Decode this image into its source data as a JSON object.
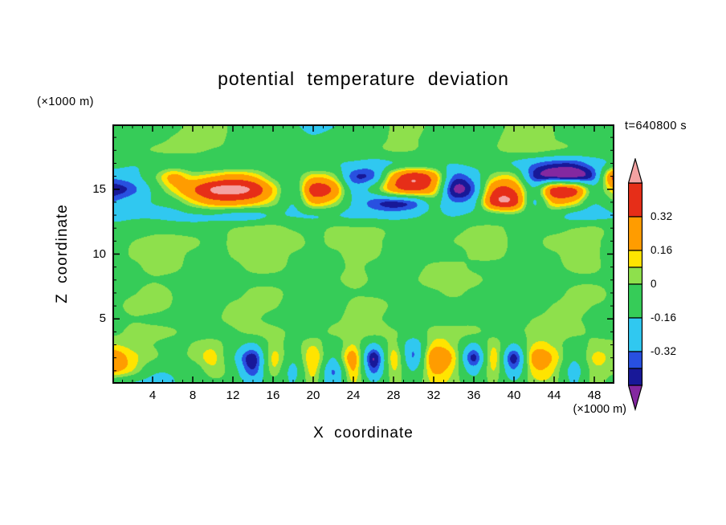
{
  "figure": {
    "title": "potential temperature deviation",
    "timestamp": "t=640800 s",
    "x_axis": {
      "label": "X coordinate",
      "unit": "(×1000 m)",
      "min": 0,
      "max": 50,
      "major_ticks": [
        4,
        8,
        12,
        16,
        20,
        24,
        28,
        32,
        36,
        40,
        44,
        48
      ],
      "minor_tick_interval": 1
    },
    "z_axis": {
      "label": "Z coordinate",
      "unit": "(×1000 m)",
      "min": 0,
      "max": 20,
      "major_ticks": [
        5,
        10,
        15
      ],
      "minor_tick_interval": 1
    },
    "colorbar": {
      "labels": [
        "0.32",
        "0.16",
        "0",
        "-0.16",
        "-0.32"
      ],
      "top_value": 0.48,
      "value_step": 0.08,
      "arrow_top_color": "#f4a2a2",
      "arrow_bottom_color": "#8428a0"
    }
  },
  "chart_data": {
    "type": "heatmap",
    "title": "potential temperature deviation",
    "xlabel": "X coordinate (×1000 m)",
    "ylabel": "Z coordinate (×1000 m)",
    "x_range": [
      0,
      50
    ],
    "z_range": [
      0,
      20
    ],
    "legend_position": "right",
    "grid": false,
    "levels": [
      -0.48,
      -0.4,
      -0.32,
      -0.16,
      0,
      0.08,
      0.16,
      0.32,
      0.48
    ],
    "colors": [
      "#8428a0",
      "#181898",
      "#2850e0",
      "#30c8f0",
      "#36cc58",
      "#8ee04c",
      "#ffe400",
      "#ff9c00",
      "#e62e18",
      "#f4a2a2"
    ],
    "x": [
      0,
      2,
      4,
      6,
      8,
      10,
      12,
      14,
      16,
      18,
      20,
      22,
      24,
      26,
      28,
      30,
      32,
      34,
      36,
      38,
      40,
      42,
      44,
      46,
      48,
      50
    ],
    "z": [
      20,
      19,
      18,
      17,
      16,
      15,
      14,
      13,
      12,
      11,
      10,
      9,
      8,
      7,
      6,
      5,
      4,
      3,
      2,
      1,
      0
    ],
    "values": [
      [
        -0.05,
        -0.05,
        -0.05,
        -0.02,
        0.04,
        0.05,
        -0.02,
        -0.05,
        -0.07,
        -0.14,
        -0.22,
        -0.18,
        -0.08,
        -0.04,
        0.03,
        0.04,
        -0.02,
        -0.05,
        -0.05,
        -0.04,
        0.03,
        0.04,
        -0.02,
        -0.05,
        -0.05,
        -0.05
      ],
      [
        -0.05,
        -0.04,
        -0.02,
        0.03,
        0.05,
        0.03,
        -0.03,
        -0.05,
        -0.06,
        -0.1,
        -0.16,
        -0.12,
        -0.06,
        -0.03,
        0.04,
        0.03,
        -0.03,
        -0.05,
        -0.04,
        -0.02,
        0.04,
        0.04,
        -0.02,
        -0.05,
        -0.05,
        -0.05
      ],
      [
        -0.06,
        -0.04,
        0.02,
        0.05,
        0.04,
        -0.02,
        -0.05,
        -0.06,
        -0.05,
        -0.07,
        -0.09,
        -0.07,
        -0.05,
        -0.02,
        0.03,
        0.02,
        -0.04,
        -0.06,
        -0.05,
        -0.02,
        0.03,
        0.03,
        -0.03,
        -0.06,
        -0.06,
        -0.06
      ],
      [
        -0.12,
        -0.16,
        -0.12,
        -0.08,
        -0.1,
        -0.14,
        -0.16,
        -0.12,
        -0.08,
        -0.1,
        -0.14,
        -0.16,
        -0.22,
        -0.24,
        -0.14,
        -0.08,
        -0.12,
        -0.18,
        -0.14,
        -0.1,
        -0.16,
        -0.3,
        -0.4,
        -0.42,
        -0.28,
        -0.1
      ],
      [
        -0.3,
        -0.25,
        -0.05,
        0.2,
        0.1,
        0.15,
        0.22,
        0.15,
        -0.02,
        -0.06,
        0.15,
        0.05,
        -0.4,
        -0.35,
        0.2,
        0.45,
        0.25,
        -0.35,
        -0.28,
        0.05,
        0.08,
        -0.38,
        -0.48,
        -0.52,
        -0.38,
        0.35
      ],
      [
        -0.46,
        -0.38,
        -0.15,
        0.1,
        0.3,
        0.5,
        0.53,
        0.45,
        0.15,
        -0.12,
        0.42,
        0.3,
        -0.22,
        -0.12,
        0.22,
        0.35,
        0.18,
        -0.48,
        -0.35,
        0.3,
        0.32,
        -0.1,
        0.4,
        0.35,
        -0.1,
        0.12
      ],
      [
        -0.3,
        -0.22,
        -0.18,
        -0.1,
        0.1,
        0.25,
        0.28,
        0.2,
        0.05,
        -0.15,
        0.2,
        0.12,
        -0.18,
        -0.38,
        -0.44,
        -0.35,
        -0.1,
        -0.3,
        -0.2,
        0.4,
        0.42,
        -0.15,
        0.2,
        0.15,
        -0.15,
        -0.05
      ],
      [
        -0.2,
        -0.18,
        -0.2,
        -0.22,
        -0.18,
        -0.15,
        -0.18,
        -0.2,
        -0.15,
        -0.18,
        -0.15,
        -0.12,
        -0.18,
        -0.22,
        -0.25,
        -0.2,
        -0.12,
        -0.15,
        -0.1,
        -0.06,
        -0.04,
        -0.1,
        -0.08,
        -0.18,
        -0.22,
        -0.18
      ],
      [
        -0.08,
        -0.06,
        -0.05,
        -0.08,
        -0.1,
        -0.06,
        0.02,
        0.04,
        0.03,
        -0.04,
        -0.06,
        0.03,
        0.04,
        0.02,
        -0.05,
        -0.08,
        -0.05,
        -0.02,
        0.03,
        0.02,
        -0.05,
        -0.06,
        -0.04,
        0.02,
        0.04,
        -0.05
      ],
      [
        -0.05,
        0.02,
        0.04,
        0.05,
        0.03,
        -0.03,
        0.04,
        0.05,
        0.04,
        0.02,
        -0.04,
        0.03,
        0.05,
        0.04,
        -0.03,
        -0.05,
        -0.04,
        0.02,
        0.04,
        0.03,
        -0.04,
        -0.05,
        0.03,
        0.05,
        0.04,
        -0.03
      ],
      [
        -0.04,
        0.03,
        0.05,
        0.04,
        -0.02,
        -0.05,
        0.02,
        0.04,
        0.03,
        -0.03,
        -0.05,
        -0.02,
        0.04,
        0.03,
        -0.04,
        -0.06,
        -0.05,
        -0.03,
        0.02,
        0.02,
        -0.05,
        -0.06,
        -0.02,
        0.04,
        0.03,
        -0.04
      ],
      [
        -0.05,
        -0.02,
        0.03,
        0.02,
        -0.04,
        -0.06,
        -0.03,
        0.02,
        0.02,
        -0.04,
        -0.06,
        -0.04,
        0.02,
        -0.02,
        -0.05,
        -0.04,
        0.03,
        0.04,
        -0.02,
        -0.05,
        -0.06,
        -0.05,
        -0.03,
        0.02,
        0.02,
        -0.05
      ],
      [
        -0.06,
        -0.05,
        -0.02,
        -0.04,
        -0.06,
        -0.05,
        -0.05,
        -0.03,
        -0.04,
        -0.06,
        -0.05,
        -0.02,
        0.03,
        -0.03,
        -0.06,
        -0.02,
        0.04,
        0.05,
        0.02,
        -0.04,
        -0.06,
        -0.06,
        -0.05,
        -0.02,
        -0.03,
        -0.06
      ],
      [
        -0.05,
        -0.03,
        0.02,
        -0.02,
        -0.05,
        -0.06,
        -0.04,
        0.02,
        0.03,
        -0.03,
        -0.05,
        -0.05,
        -0.02,
        -0.05,
        -0.06,
        -0.05,
        -0.02,
        0.02,
        -0.03,
        -0.06,
        -0.05,
        -0.04,
        -0.02,
        0.03,
        0.02,
        -0.05
      ],
      [
        -0.04,
        0.02,
        0.03,
        -0.02,
        -0.05,
        -0.04,
        0.02,
        0.04,
        0.02,
        -0.04,
        -0.06,
        -0.05,
        0.02,
        0.03,
        -0.04,
        -0.06,
        -0.05,
        -0.04,
        -0.05,
        -0.06,
        -0.04,
        -0.02,
        0.03,
        0.04,
        -0.02,
        -0.05
      ],
      [
        -0.05,
        -0.02,
        -0.04,
        -0.05,
        -0.04,
        -0.02,
        0.03,
        0.02,
        -0.03,
        -0.05,
        -0.04,
        -0.02,
        0.04,
        0.02,
        -0.05,
        -0.04,
        -0.02,
        -0.05,
        -0.06,
        -0.05,
        -0.03,
        0.02,
        0.04,
        0.02,
        -0.04,
        -0.06
      ],
      [
        -0.03,
        0.03,
        0.04,
        0.02,
        -0.03,
        -0.05,
        -0.02,
        0.03,
        0.04,
        -0.02,
        -0.05,
        0.02,
        0.04,
        0.05,
        0.02,
        -0.04,
        0.03,
        0.04,
        0.02,
        -0.04,
        -0.02,
        0.03,
        0.05,
        0.03,
        -0.02,
        -0.05
      ],
      [
        0.08,
        0.05,
        0.02,
        -0.02,
        0.02,
        0.05,
        -0.08,
        -0.2,
        0.04,
        -0.05,
        0.06,
        -0.1,
        0.08,
        -0.18,
        0.06,
        -0.25,
        0.12,
        0.05,
        -0.2,
        0.06,
        -0.18,
        0.08,
        0.05,
        -0.08,
        0.04,
        0.05
      ],
      [
        0.25,
        0.12,
        0.04,
        -0.03,
        0.03,
        0.1,
        -0.15,
        -0.46,
        0.1,
        -0.12,
        0.14,
        -0.18,
        0.22,
        -0.46,
        0.15,
        -0.3,
        0.28,
        0.12,
        -0.44,
        0.12,
        -0.44,
        0.2,
        0.12,
        -0.15,
        0.1,
        0.08
      ],
      [
        0.18,
        0.08,
        -0.1,
        -0.12,
        -0.08,
        0.04,
        -0.1,
        -0.4,
        0.06,
        -0.2,
        0.1,
        -0.35,
        0.15,
        -0.35,
        0.1,
        -0.15,
        0.18,
        0.06,
        -0.25,
        0.08,
        -0.3,
        0.12,
        0.06,
        -0.24,
        0.05,
        0.04
      ],
      [
        -0.15,
        -0.18,
        -0.2,
        -0.15,
        -0.12,
        -0.05,
        -0.08,
        -0.22,
        -0.05,
        -0.15,
        0.04,
        -0.3,
        0.06,
        -0.15,
        0.04,
        -0.05,
        0.08,
        0.02,
        -0.1,
        0.02,
        -0.12,
        0.05,
        0.02,
        -0.2,
        0.02,
        -0.04
      ]
    ]
  }
}
